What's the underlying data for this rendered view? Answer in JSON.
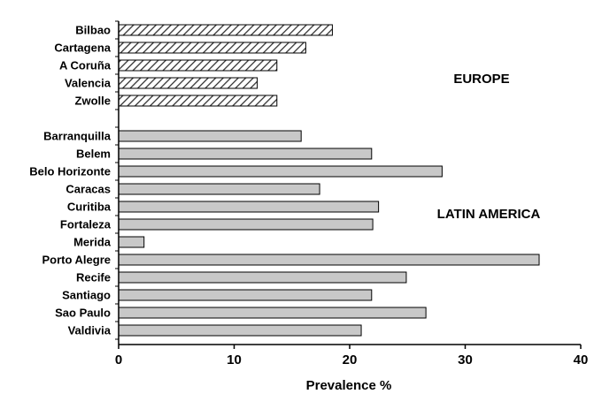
{
  "chart_data": {
    "type": "bar",
    "orientation": "horizontal",
    "xlabel": "Prevalence %",
    "xlim": [
      0,
      40
    ],
    "xticks": [
      0,
      10,
      20,
      30,
      40
    ],
    "grid": false,
    "groups": [
      {
        "label": "EUROPE",
        "fill": "hatched",
        "categories": [
          "Bilbao",
          "Cartagena",
          "A Coruña",
          "Valencia",
          "Zwolle"
        ],
        "values": [
          18.5,
          16.2,
          13.7,
          12.0,
          13.7
        ]
      },
      {
        "label": "LATIN AMERICA",
        "fill": "#c8c8c8",
        "categories": [
          "Barranquilla",
          "Belem",
          "Belo Horizonte",
          "Caracas",
          "Curitiba",
          "Fortaleza",
          "Merida",
          "Porto Alegre",
          "Recife",
          "Santiago",
          "Sao Paulo",
          "Valdivia"
        ],
        "values": [
          15.8,
          21.9,
          28.0,
          17.4,
          22.5,
          22.0,
          2.2,
          36.4,
          24.9,
          21.9,
          26.6,
          21.0
        ]
      }
    ]
  }
}
